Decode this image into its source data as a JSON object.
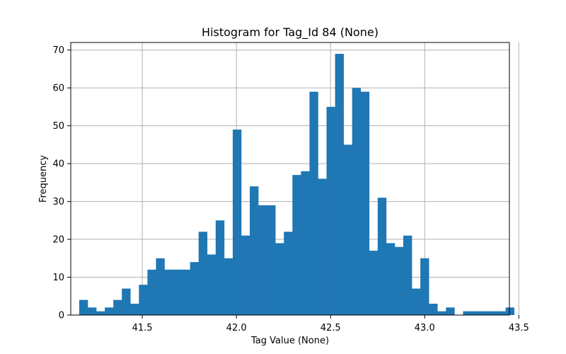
{
  "chart_data": {
    "type": "bar",
    "title": "Histogram for Tag_Id 84 (None)",
    "xlabel": "Tag Value (None)",
    "ylabel": "Frequency",
    "xlim": [
      41.12,
      43.45
    ],
    "ylim": [
      0,
      72
    ],
    "xticks": [
      41.5,
      42.0,
      42.5,
      43.0,
      43.5
    ],
    "xtick_labels": [
      "41.5",
      "42.0",
      "42.5",
      "43.0",
      "43.5"
    ],
    "yticks": [
      0,
      10,
      20,
      30,
      40,
      50,
      60,
      70
    ],
    "ytick_labels": [
      "0",
      "10",
      "20",
      "30",
      "40",
      "50",
      "60",
      "70"
    ],
    "grid": true,
    "bar_color": "#1f77b4",
    "bin_start": 41.165,
    "bin_width": 0.0453,
    "counts": [
      4,
      2,
      1,
      2,
      4,
      7,
      3,
      8,
      12,
      15,
      12,
      12,
      12,
      14,
      22,
      16,
      25,
      15,
      49,
      21,
      34,
      29,
      29,
      19,
      22,
      37,
      38,
      59,
      36,
      55,
      69,
      45,
      60,
      59,
      17,
      31,
      19,
      18,
      21,
      7,
      15,
      3,
      1,
      2,
      0,
      1,
      1,
      1,
      1,
      1,
      2
    ]
  }
}
